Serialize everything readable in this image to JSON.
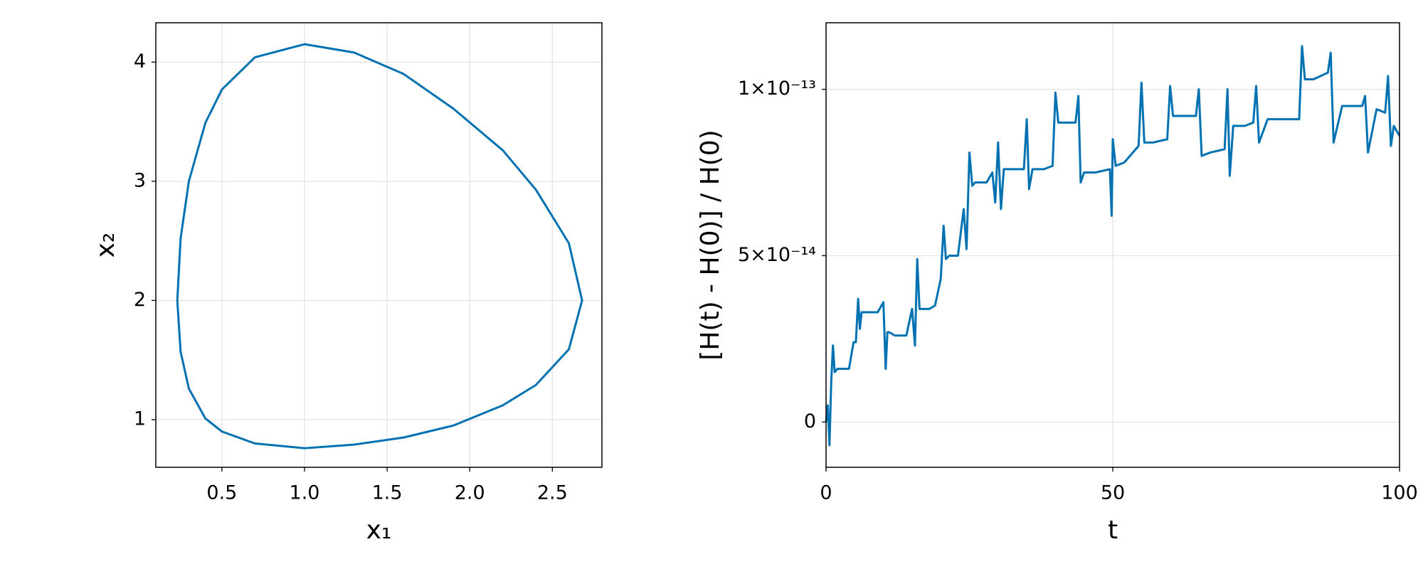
{
  "chart_data": [
    {
      "type": "line",
      "xlabel": "x₁",
      "ylabel": "x₂",
      "xlim": [
        0.1,
        2.8
      ],
      "ylim": [
        0.6,
        4.33
      ],
      "xticks": [
        0.5,
        {
          "value": 1,
          "label": "1.0"
        },
        1.5,
        {
          "value": 2,
          "label": "2.0"
        },
        2.5
      ],
      "yticks": [
        1,
        2,
        3,
        4
      ],
      "grid": true,
      "series": [
        {
          "color": "#0072b2",
          "x": [
            0.23,
            0.25,
            0.3,
            0.4,
            0.5,
            0.7,
            1.0,
            1.3,
            1.6,
            1.9,
            2.2,
            2.4,
            2.6,
            2.68,
            2.6,
            2.4,
            2.2,
            1.9,
            1.6,
            1.3,
            1.0,
            0.7,
            0.5,
            0.4,
            0.3,
            0.25,
            0.23
          ],
          "values": [
            2.0,
            2.52,
            3.0,
            3.49,
            3.77,
            4.04,
            4.15,
            4.08,
            3.9,
            3.61,
            3.26,
            2.93,
            2.48,
            2.0,
            1.59,
            1.29,
            1.12,
            0.95,
            0.85,
            0.79,
            0.76,
            0.8,
            0.9,
            1.01,
            1.26,
            1.57,
            2.0
          ]
        }
      ]
    },
    {
      "type": "line",
      "xlabel": "t",
      "ylabel": "[H(t) - H(0)] / H(0)",
      "xlim": [
        0,
        100
      ],
      "ylim": [
        -1.36e-14,
        1.2e-13
      ],
      "xticks": [
        0,
        50,
        100
      ],
      "yticks": [
        0,
        {
          "value": 5e-14,
          "label": "5×10⁻¹⁴"
        },
        {
          "value": 1e-13,
          "label": "1×10⁻¹³"
        }
      ],
      "grid": true,
      "series": [
        {
          "color": "#0072b2",
          "x": [
            0,
            0.3,
            0.6,
            0.9,
            1.2,
            1.5,
            2,
            3,
            4,
            4.8,
            5.2,
            5.6,
            5.9,
            6.2,
            7,
            8,
            9,
            10,
            10.4,
            10.7,
            11,
            12,
            13,
            14,
            15,
            15.5,
            15.9,
            16.3,
            17,
            18,
            19,
            20,
            20.5,
            20.9,
            21.5,
            23,
            24,
            24.5,
            25,
            25.5,
            26,
            28,
            29,
            29.5,
            30,
            30.5,
            31,
            33,
            34.5,
            35,
            35.4,
            36,
            38,
            39.5,
            40,
            40.5,
            42,
            43.5,
            44,
            44.4,
            45,
            47,
            49.5,
            49.8,
            50,
            50.5,
            52,
            54.5,
            55,
            55.5,
            57,
            59.5,
            60,
            60.5,
            62,
            64.5,
            65,
            65.5,
            67,
            69.5,
            70,
            70.4,
            71,
            73,
            74.5,
            75,
            75.5,
            77,
            80,
            82.5,
            83,
            83.5,
            85,
            87.5,
            88,
            88.5,
            90,
            92,
            93.5,
            94,
            94.5,
            96,
            97.5,
            98,
            98.5,
            99,
            100
          ],
          "values": [
            0,
            5e-15,
            -7e-15,
            1.2e-14,
            2.3e-14,
            1.5e-14,
            1.6e-14,
            1.6e-14,
            1.6e-14,
            2.4e-14,
            2.4e-14,
            3.7e-14,
            2.8e-14,
            3.3e-14,
            3.3e-14,
            3.3e-14,
            3.3e-14,
            3.6e-14,
            1.6e-14,
            2.7e-14,
            2.7e-14,
            2.6e-14,
            2.6e-14,
            2.6e-14,
            3.4e-14,
            2.3e-14,
            4.9e-14,
            3.4e-14,
            3.4e-14,
            3.4e-14,
            3.5e-14,
            4.3e-14,
            5.9e-14,
            4.9e-14,
            5e-14,
            5e-14,
            6.4e-14,
            5.2e-14,
            8.1e-14,
            7.1e-14,
            7.2e-14,
            7.2e-14,
            7.5e-14,
            6.6e-14,
            8.4e-14,
            6.4e-14,
            7.6e-14,
            7.6e-14,
            7.6e-14,
            9.1e-14,
            7e-14,
            7.6e-14,
            7.6e-14,
            7.7e-14,
            9.9e-14,
            9e-14,
            9e-14,
            9e-14,
            9.8e-14,
            7.2e-14,
            7.5e-14,
            7.5e-14,
            7.6e-14,
            6.2e-14,
            8.5e-14,
            7.7e-14,
            7.8e-14,
            8.3e-14,
            1.02e-13,
            8.4e-14,
            8.4e-14,
            8.5e-14,
            1.01e-13,
            9.2e-14,
            9.2e-14,
            9.2e-14,
            1e-13,
            8e-14,
            8.1e-14,
            8.2e-14,
            1e-13,
            7.4e-14,
            8.9e-14,
            8.9e-14,
            9e-14,
            1.01e-13,
            8.4e-14,
            9.1e-14,
            9.1e-14,
            9.1e-14,
            1.13e-13,
            1.03e-13,
            1.03e-13,
            1.05e-13,
            1.11e-13,
            8.4e-14,
            9.5e-14,
            9.5e-14,
            9.5e-14,
            9.8e-14,
            8.1e-14,
            9.4e-14,
            9.3e-14,
            1.04e-13,
            8.3e-14,
            8.9e-14,
            8.6e-14
          ]
        }
      ]
    }
  ]
}
